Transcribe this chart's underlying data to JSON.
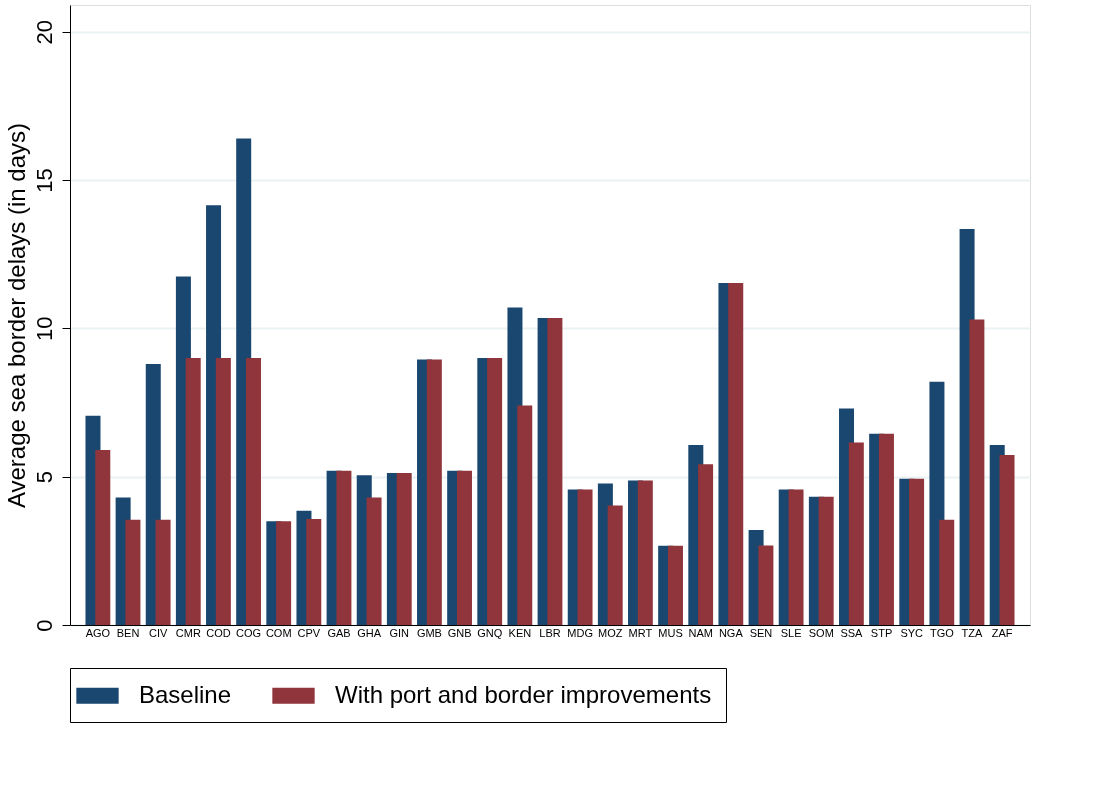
{
  "chart_data": {
    "type": "bar",
    "ylabel": "Average sea border delays (in days)",
    "categories": [
      "AGO",
      "BEN",
      "CIV",
      "CMR",
      "COD",
      "COG",
      "COM",
      "CPV",
      "GAB",
      "GHA",
      "GIN",
      "GMB",
      "GNB",
      "GNQ",
      "KEN",
      "LBR",
      "MDG",
      "MOZ",
      "MRT",
      "MUS",
      "NAM",
      "NGA",
      "SEN",
      "SLE",
      "SOM",
      "SSA",
      "STP",
      "SYC",
      "TGO",
      "TZA",
      "ZAF"
    ],
    "series": [
      {
        "name": "Baseline",
        "color": "#1a476f",
        "values": [
          7.05,
          4.3,
          8.8,
          11.75,
          14.15,
          16.4,
          3.5,
          3.85,
          5.2,
          5.05,
          5.12,
          8.95,
          5.2,
          9.0,
          10.7,
          10.35,
          4.57,
          4.77,
          4.87,
          2.67,
          6.07,
          11.53,
          3.2,
          4.57,
          4.32,
          7.3,
          6.45,
          4.93,
          8.2,
          13.35,
          6.07
        ]
      },
      {
        "name": "With port and border improvements",
        "color": "#90353b",
        "values": [
          5.9,
          3.55,
          3.55,
          9.0,
          9.0,
          9.0,
          3.5,
          3.57,
          5.2,
          4.3,
          5.12,
          8.95,
          5.2,
          9.0,
          7.4,
          10.35,
          4.57,
          4.03,
          4.87,
          2.67,
          5.42,
          11.53,
          2.68,
          4.57,
          4.32,
          6.15,
          6.45,
          4.93,
          3.55,
          10.3,
          5.73
        ]
      }
    ],
    "ylim": [
      0,
      20.9
    ],
    "yticks": [
      0,
      5,
      10,
      15,
      20
    ],
    "grid": "y",
    "legend": "bottom"
  }
}
